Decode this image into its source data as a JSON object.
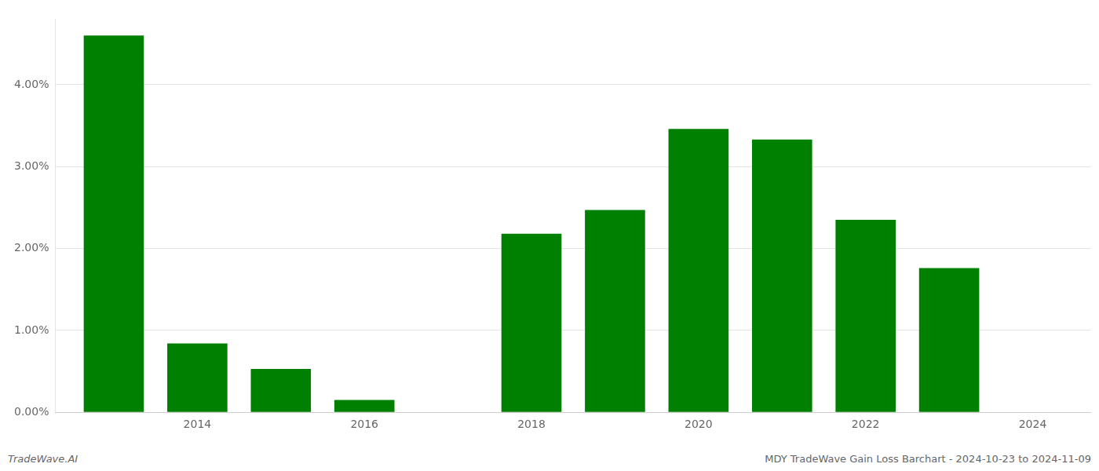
{
  "chart_data": {
    "type": "bar",
    "x": [
      2013,
      2014,
      2015,
      2016,
      2018,
      2019,
      2020,
      2021,
      2022,
      2023
    ],
    "values": [
      4.6,
      0.84,
      0.53,
      0.15,
      2.18,
      2.47,
      3.46,
      3.33,
      2.35,
      1.76
    ],
    "color": "#008000",
    "xlim": [
      2012.3,
      2024.7
    ],
    "xticks": [
      2014,
      2016,
      2018,
      2020,
      2022,
      2024
    ],
    "ylim": [
      0,
      4.8
    ],
    "yticks": [
      {
        "value": 0.0,
        "label": "0.00%"
      },
      {
        "value": 1.0,
        "label": "1.00%"
      },
      {
        "value": 2.0,
        "label": "2.00%"
      },
      {
        "value": 3.0,
        "label": "3.00%"
      },
      {
        "value": 4.0,
        "label": "4.00%"
      }
    ],
    "grid": "y",
    "annotations": [
      "TradeWave.AI",
      "MDY TradeWave Gain Loss Barchart - 2024-10-23 to 2024-11-09"
    ]
  }
}
